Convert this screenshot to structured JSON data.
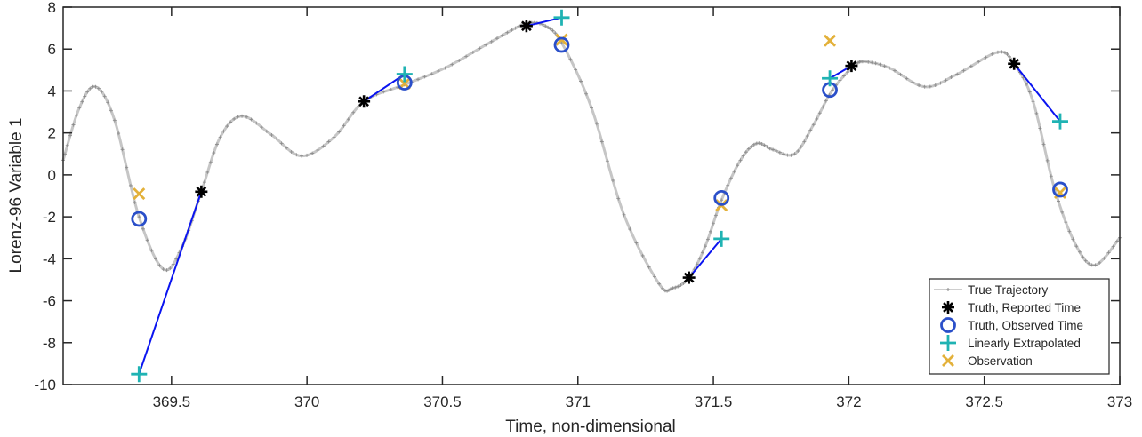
{
  "chart_data": {
    "type": "line",
    "title": "",
    "xlabel": "Time, non-dimensional",
    "ylabel": "Lorenz-96 Variable 1",
    "xlim": [
      369.1,
      373
    ],
    "ylim": [
      -10,
      8
    ],
    "xticks": [
      "369.5",
      "370",
      "370.5",
      "371",
      "371.5",
      "372",
      "372.5",
      "373"
    ],
    "yticks": [
      "-10",
      "-8",
      "-6",
      "-4",
      "-2",
      "0",
      "2",
      "4",
      "6",
      "8"
    ],
    "grid": false,
    "legend_position": "bottom-right",
    "series": [
      {
        "name": "True Trajectory",
        "color": "#a0a0a0",
        "x": [
          369.1,
          369.16,
          369.22,
          369.29,
          369.38,
          369.47,
          369.54,
          369.61,
          369.68,
          369.76,
          369.87,
          369.98,
          370.1,
          370.21,
          370.36,
          370.51,
          370.66,
          370.77,
          370.82,
          370.88,
          370.94,
          371.05,
          371.17,
          371.3,
          371.35,
          371.41,
          371.47,
          371.53,
          371.6,
          371.66,
          371.72,
          371.8,
          371.87,
          371.94,
          372.02,
          372.06,
          372.15,
          372.28,
          372.4,
          372.55,
          372.61,
          372.68,
          372.76,
          372.84,
          372.91,
          373.0
        ],
        "y": [
          0.7,
          3.2,
          4.2,
          2.6,
          -2.0,
          -4.5,
          -3.4,
          -0.8,
          1.8,
          2.8,
          1.9,
          0.9,
          1.8,
          3.5,
          4.3,
          5.1,
          6.2,
          7.0,
          7.25,
          7.1,
          6.3,
          3.2,
          -1.9,
          -5.2,
          -5.4,
          -4.9,
          -3.4,
          -1.2,
          0.7,
          1.5,
          1.2,
          1.0,
          2.4,
          4.05,
          5.2,
          5.4,
          5.1,
          4.2,
          4.8,
          5.85,
          5.3,
          3.5,
          -0.7,
          -3.4,
          -4.3,
          -3.0
        ]
      },
      {
        "name": "Truth, Reported Time",
        "color": "#000000",
        "x": [
          369.61,
          370.21,
          370.81,
          371.41,
          372.01,
          372.61
        ],
        "y": [
          -0.8,
          3.5,
          7.1,
          -4.9,
          5.2,
          5.3
        ]
      },
      {
        "name": "Truth, Observed Time",
        "color": "#2a4fc9",
        "x": [
          369.38,
          370.36,
          370.94,
          371.53,
          371.93,
          372.78
        ],
        "y": [
          -2.1,
          4.4,
          6.2,
          -1.1,
          4.05,
          -0.7
        ]
      },
      {
        "name": "Linearly Extrapolated",
        "color": "#1fb3b3",
        "x": [
          369.38,
          370.36,
          370.94,
          371.53,
          371.93,
          372.78
        ],
        "y": [
          -9.5,
          4.8,
          7.5,
          -3.05,
          4.6,
          2.55
        ]
      },
      {
        "name": "Observation",
        "color": "#e3b13a",
        "x": [
          369.38,
          370.36,
          370.94,
          371.53,
          371.93,
          372.78
        ],
        "y": [
          -0.9,
          4.35,
          6.45,
          -1.45,
          6.4,
          -0.85
        ]
      }
    ],
    "extrapolation_line_color": "#0a14f0"
  }
}
